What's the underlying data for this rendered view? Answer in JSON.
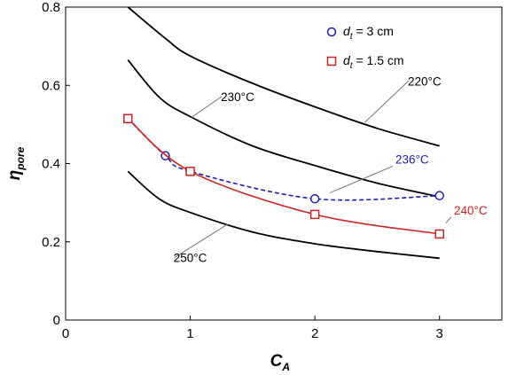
{
  "chart_data": {
    "type": "line",
    "title": "",
    "xlabel": {
      "main": "C",
      "sub": "A"
    },
    "ylabel": {
      "main": "η",
      "sub": "pore"
    },
    "xlim": [
      0,
      3.5
    ],
    "ylim": [
      0,
      0.8
    ],
    "xticks": [
      0,
      1,
      2,
      3
    ],
    "yticks": [
      0,
      0.2,
      0.4,
      0.6,
      0.8
    ],
    "xtick_labels": [
      "0",
      "1",
      "2",
      "3"
    ],
    "ytick_labels": [
      "0",
      "0.2",
      "0.4",
      "0.6",
      "0.8"
    ],
    "grid": false,
    "legend_position": "top-right",
    "series": [
      {
        "name": "d_t = 3 cm",
        "legend": {
          "main": "d",
          "sub": "t",
          "rest": " = 3 cm"
        },
        "color": "#1f1fb4",
        "line_style": "dashed",
        "marker": "circle",
        "x": [
          0.5,
          0.8,
          1.0,
          2.0,
          3.0
        ],
        "y": [
          0.515,
          0.42,
          0.38,
          0.31,
          0.318
        ],
        "curve_label": "236°C",
        "curve_label_color": "#1f1fb4"
      },
      {
        "name": "d_t = 1.5 cm",
        "legend": {
          "main": "d",
          "sub": "t",
          "rest": " = 1.5 cm"
        },
        "color": "#cc2222",
        "line_style": "solid",
        "marker": "square",
        "x": [
          0.5,
          1.0,
          2.0,
          3.0
        ],
        "y": [
          0.515,
          0.38,
          0.27,
          0.22
        ],
        "curve_label": "240°C",
        "curve_label_color": "#cc2222"
      }
    ],
    "isotherms": [
      {
        "label": "220°C",
        "x": [
          0.5,
          0.8,
          1.0,
          1.5,
          2.0,
          2.5,
          3.0
        ],
        "y": [
          0.8,
          0.72,
          0.675,
          0.605,
          0.545,
          0.49,
          0.445
        ]
      },
      {
        "label": "230°C",
        "x": [
          0.5,
          0.75,
          1.0,
          1.5,
          2.0,
          2.5,
          3.0
        ],
        "y": [
          0.665,
          0.57,
          0.52,
          0.445,
          0.395,
          0.35,
          0.315
        ]
      },
      {
        "label": "250°C",
        "x": [
          0.5,
          0.75,
          1.0,
          1.5,
          2.0,
          2.5,
          3.0
        ],
        "y": [
          0.38,
          0.31,
          0.275,
          0.225,
          0.195,
          0.175,
          0.158
        ]
      }
    ]
  }
}
